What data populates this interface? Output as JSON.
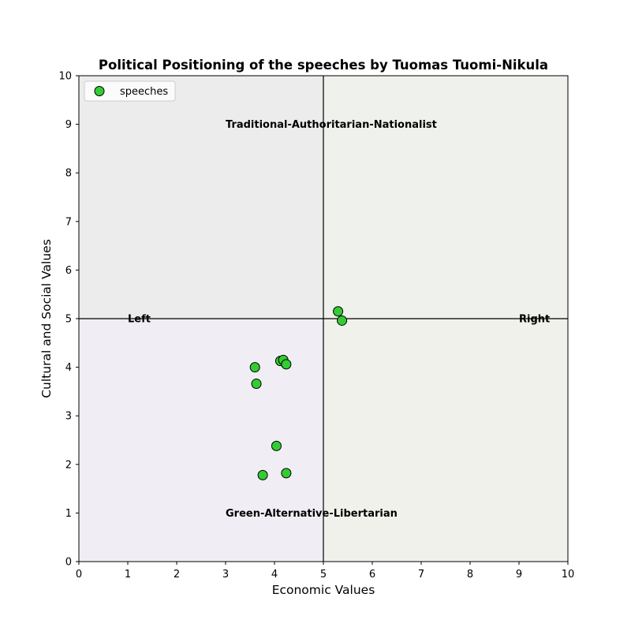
{
  "chart_data": {
    "type": "scatter",
    "title": "Political Positioning of the speeches by Tuomas Tuomi-Nikula",
    "xlabel": "Economic Values",
    "ylabel": "Cultural and Social Values",
    "xlim": [
      0,
      10
    ],
    "ylim": [
      0,
      10
    ],
    "xticks": [
      "0",
      "1",
      "2",
      "3",
      "4",
      "5",
      "6",
      "7",
      "8",
      "9",
      "10"
    ],
    "yticks": [
      "0",
      "1",
      "2",
      "3",
      "4",
      "5",
      "6",
      "7",
      "8",
      "9",
      "10"
    ],
    "grid": false,
    "legend_position": "top-left",
    "center": [
      5,
      5
    ],
    "quadrant_colors": {
      "top_left": "#ececec",
      "top_right": "#eff1ec",
      "bottom_left": "#f0eef4",
      "bottom_right": "#f1f1ec"
    },
    "series": [
      {
        "name": "speeches",
        "color": "#33cc33",
        "edge_color": "#000000",
        "points": [
          {
            "x": 5.3,
            "y": 5.15
          },
          {
            "x": 5.38,
            "y": 4.96
          },
          {
            "x": 3.6,
            "y": 4.0
          },
          {
            "x": 4.12,
            "y": 4.13
          },
          {
            "x": 4.18,
            "y": 4.15
          },
          {
            "x": 4.24,
            "y": 4.06
          },
          {
            "x": 3.63,
            "y": 3.66
          },
          {
            "x": 4.04,
            "y": 2.38
          },
          {
            "x": 3.76,
            "y": 1.78
          },
          {
            "x": 4.24,
            "y": 1.82
          }
        ]
      }
    ],
    "annotations": [
      {
        "text": "Traditional-Authoritarian-Nationalist",
        "x": 3.0,
        "y": 9.0
      },
      {
        "text": "Green-Alternative-Libertarian",
        "x": 3.0,
        "y": 1.0
      },
      {
        "text": "Left",
        "x": 1.0,
        "y": 5.0
      },
      {
        "text": "Right",
        "x": 9.0,
        "y": 5.0
      }
    ]
  }
}
